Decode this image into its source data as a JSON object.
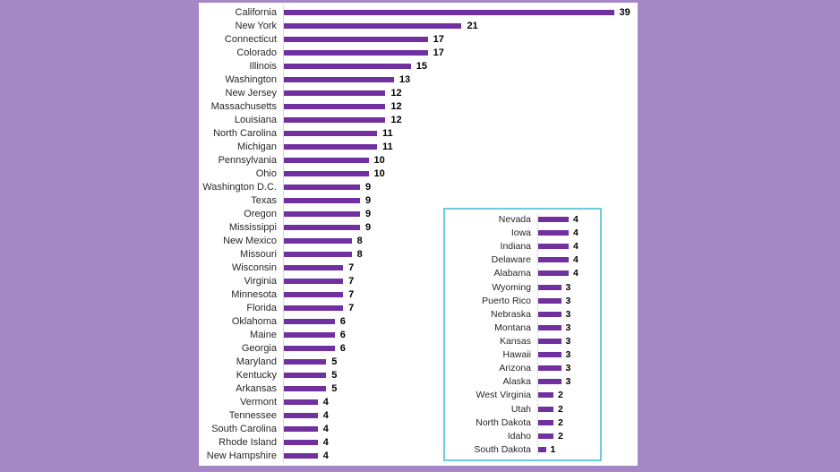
{
  "window": {
    "background_color": "#A587C5",
    "panel_color": "#FFFFFF"
  },
  "chart_data": {
    "type": "bar",
    "orientation": "horizontal",
    "title": "",
    "xlabel": "",
    "ylabel": "",
    "grid": false,
    "legend": false,
    "value_labels": true,
    "bar_color": "#7030A0",
    "axis_line_color": "#D9D9D9",
    "main_chart": {
      "xlim": [
        0,
        39
      ],
      "categories": [
        "California",
        "New York",
        "Connecticut",
        "Colorado",
        "Illinois",
        "Washington",
        "New Jersey",
        "Massachusetts",
        "Louisiana",
        "North Carolina",
        "Michigan",
        "Pennsylvania",
        "Ohio",
        "Washington D.C.",
        "Texas",
        "Oregon",
        "Mississippi",
        "New Mexico",
        "Missouri",
        "Wisconsin",
        "Virginia",
        "Minnesota",
        "Florida",
        "Oklahoma",
        "Maine",
        "Georgia",
        "Maryland",
        "Kentucky",
        "Arkansas",
        "Vermont",
        "Tennessee",
        "South Carolina",
        "Rhode Island",
        "New Hampshire"
      ],
      "values": [
        39,
        21,
        17,
        17,
        15,
        13,
        12,
        12,
        12,
        11,
        11,
        10,
        10,
        9,
        9,
        9,
        9,
        8,
        8,
        7,
        7,
        7,
        7,
        6,
        6,
        6,
        5,
        5,
        5,
        4,
        4,
        4,
        4,
        4
      ]
    },
    "inset_chart": {
      "border_color": "#6CCBDD",
      "xlim": [
        0,
        4
      ],
      "categories": [
        "Nevada",
        "Iowa",
        "Indiana",
        "Delaware",
        "Alabama",
        "Wyoming",
        "Puerto Rico",
        "Nebraska",
        "Montana",
        "Kansas",
        "Hawaii",
        "Arizona",
        "Alaska",
        "West Virginia",
        "Utah",
        "North Dakota",
        "Idaho",
        "South Dakota"
      ],
      "values": [
        4,
        4,
        4,
        4,
        4,
        3,
        3,
        3,
        3,
        3,
        3,
        3,
        3,
        2,
        2,
        2,
        2,
        1
      ]
    }
  }
}
